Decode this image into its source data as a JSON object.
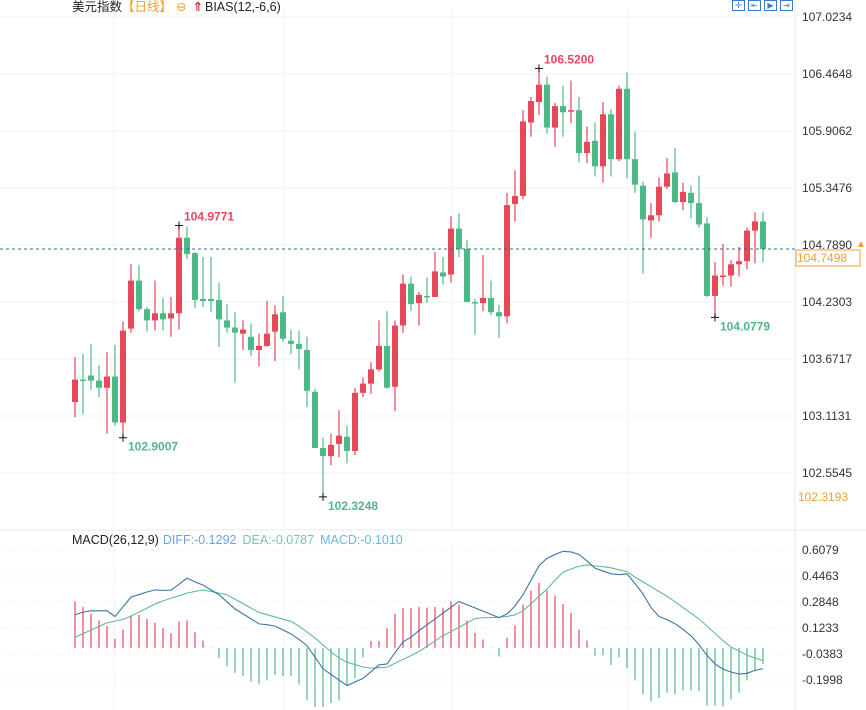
{
  "header": {
    "symbol": "美元指数",
    "timeframe": "【日线】",
    "collapse_icon": "circle-minus-icon",
    "indicator_icon": "red-up-arrow-icon",
    "indicator": "BIAS(12,-6,6)"
  },
  "toolbar": {
    "icons": [
      "crosshair-icon",
      "zoom-left-icon",
      "play-icon",
      "jump-end-icon"
    ]
  },
  "colors": {
    "up": "#e8465b",
    "down": "#52b788",
    "diff": "#3d74a6",
    "dea": "#62b99a",
    "last_price": "#f0a030",
    "grid": "#eef0f3"
  },
  "chart_data": [
    {
      "type": "candlestick",
      "title": "美元指数",
      "y_ticks": [
        "107.0234",
        "106.4648",
        "105.9062",
        "105.3476",
        "104.7890",
        "104.2303",
        "103.6717",
        "103.1131",
        "102.5545"
      ],
      "ylim": [
        102.3193,
        107.0234
      ],
      "grid": true,
      "last_price": "104.7498",
      "range_low_label": "102.3193",
      "annotations": [
        {
          "index": 13,
          "text": "104.9771",
          "kind": "high"
        },
        {
          "index": 58,
          "text": "106.5200",
          "kind": "high"
        },
        {
          "index": 6,
          "text": "102.9007",
          "kind": "low"
        },
        {
          "index": 31,
          "text": "102.3248",
          "kind": "low"
        },
        {
          "index": 80,
          "text": "104.0779",
          "kind": "low"
        }
      ],
      "ohlc": [
        [
          103.25,
          103.69,
          103.1,
          103.47
        ],
        [
          103.47,
          103.72,
          103.13,
          103.46
        ],
        [
          103.51,
          103.82,
          103.37,
          103.46
        ],
        [
          103.46,
          103.61,
          103.3,
          103.39
        ],
        [
          103.39,
          103.74,
          102.94,
          103.5
        ],
        [
          103.5,
          103.81,
          103.02,
          103.05
        ],
        [
          103.05,
          104.04,
          102.9,
          103.95
        ],
        [
          103.97,
          104.6,
          103.93,
          104.44
        ],
        [
          104.44,
          104.59,
          104.14,
          104.16
        ],
        [
          104.16,
          104.18,
          103.94,
          104.05
        ],
        [
          104.05,
          104.44,
          103.95,
          104.12
        ],
        [
          104.12,
          104.27,
          103.95,
          104.06
        ],
        [
          104.07,
          104.28,
          103.89,
          104.12
        ],
        [
          104.12,
          104.98,
          103.96,
          104.86
        ],
        [
          104.86,
          104.97,
          104.65,
          104.7
        ],
        [
          104.71,
          104.72,
          104.17,
          104.25
        ],
        [
          104.26,
          104.67,
          104.18,
          104.24
        ],
        [
          104.26,
          104.67,
          104.13,
          104.24
        ],
        [
          104.25,
          104.42,
          103.79,
          104.06
        ],
        [
          104.05,
          104.21,
          103.93,
          103.98
        ],
        [
          103.98,
          104.13,
          103.44,
          103.93
        ],
        [
          103.92,
          104.05,
          103.76,
          103.96
        ],
        [
          103.89,
          104.02,
          103.7,
          103.76
        ],
        [
          103.76,
          103.92,
          103.6,
          103.8
        ],
        [
          103.8,
          104.24,
          103.79,
          103.92
        ],
        [
          103.94,
          104.2,
          103.65,
          104.11
        ],
        [
          104.13,
          104.29,
          103.84,
          103.87
        ],
        [
          103.85,
          103.96,
          103.72,
          103.82
        ],
        [
          103.82,
          103.95,
          103.57,
          103.77
        ],
        [
          103.76,
          103.89,
          103.2,
          103.36
        ],
        [
          103.35,
          103.38,
          102.8,
          102.8
        ],
        [
          102.8,
          102.9,
          102.32,
          102.72
        ],
        [
          102.72,
          102.94,
          102.63,
          102.83
        ],
        [
          102.84,
          103.17,
          102.71,
          102.92
        ],
        [
          102.91,
          103.02,
          102.65,
          102.77
        ],
        [
          102.77,
          103.39,
          102.73,
          103.34
        ],
        [
          103.34,
          103.49,
          103.3,
          103.43
        ],
        [
          103.43,
          103.64,
          103.33,
          103.57
        ],
        [
          103.57,
          104.05,
          103.55,
          103.8
        ],
        [
          103.8,
          104.14,
          103.38,
          103.39
        ],
        [
          103.4,
          104.05,
          103.16,
          104.0
        ],
        [
          104.0,
          104.5,
          103.93,
          104.41
        ],
        [
          104.41,
          104.48,
          104.14,
          104.21
        ],
        [
          104.22,
          104.33,
          104.0,
          104.3
        ],
        [
          104.29,
          104.47,
          104.22,
          104.28
        ],
        [
          104.28,
          104.72,
          104.28,
          104.53
        ],
        [
          104.52,
          104.67,
          104.4,
          104.48
        ],
        [
          104.5,
          105.07,
          104.42,
          104.95
        ],
        [
          104.95,
          105.1,
          104.67,
          104.75
        ],
        [
          104.75,
          104.84,
          104.23,
          104.23
        ],
        [
          104.23,
          104.26,
          103.91,
          104.22
        ],
        [
          104.22,
          104.69,
          104.14,
          104.27
        ],
        [
          104.27,
          104.44,
          104.1,
          104.13
        ],
        [
          104.13,
          104.2,
          103.88,
          104.09
        ],
        [
          104.09,
          105.3,
          104.02,
          105.18
        ],
        [
          105.19,
          105.52,
          105.02,
          105.27
        ],
        [
          105.27,
          106.11,
          105.24,
          106.0
        ],
        [
          105.99,
          106.24,
          105.85,
          106.2
        ],
        [
          106.19,
          106.52,
          106.06,
          106.36
        ],
        [
          106.36,
          106.44,
          105.88,
          105.94
        ],
        [
          105.94,
          106.18,
          105.75,
          106.15
        ],
        [
          106.15,
          106.35,
          105.85,
          106.09
        ],
        [
          106.1,
          106.4,
          105.98,
          106.11
        ],
        [
          106.11,
          106.24,
          105.6,
          105.69
        ],
        [
          105.69,
          105.95,
          105.59,
          105.8
        ],
        [
          105.81,
          105.99,
          105.46,
          105.56
        ],
        [
          105.56,
          106.19,
          105.4,
          106.07
        ],
        [
          106.07,
          106.12,
          105.46,
          105.63
        ],
        [
          105.63,
          106.35,
          105.61,
          106.32
        ],
        [
          106.32,
          106.48,
          105.44,
          105.63
        ],
        [
          105.63,
          105.9,
          105.3,
          105.38
        ],
        [
          105.37,
          105.41,
          104.51,
          105.04
        ],
        [
          105.03,
          105.2,
          104.86,
          105.08
        ],
        [
          105.08,
          105.45,
          105.02,
          105.36
        ],
        [
          105.36,
          105.64,
          105.34,
          105.49
        ],
        [
          105.5,
          105.74,
          105.2,
          105.21
        ],
        [
          105.21,
          105.4,
          105.13,
          105.31
        ],
        [
          105.3,
          105.37,
          105.05,
          105.2
        ],
        [
          105.2,
          105.47,
          104.96,
          104.99
        ],
        [
          105.0,
          105.06,
          104.28,
          104.29
        ],
        [
          104.29,
          104.62,
          104.08,
          104.49
        ],
        [
          104.49,
          104.8,
          104.39,
          104.49
        ],
        [
          104.49,
          104.64,
          104.38,
          104.6
        ],
        [
          104.6,
          104.77,
          104.48,
          104.63
        ],
        [
          104.63,
          104.96,
          104.55,
          104.93
        ],
        [
          104.93,
          105.11,
          104.61,
          105.02
        ],
        [
          105.02,
          105.11,
          104.62,
          104.75
        ]
      ]
    },
    {
      "type": "macd",
      "title": "MACD(26,12,9)",
      "diff_label": "DIFF:-0.1292",
      "dea_label": "DEA:-0.0787",
      "macd_label": "MACD:-0.1010",
      "y_ticks": [
        "0.6079",
        "0.4463",
        "0.2848",
        "0.1233",
        "-0.0383",
        "-0.1998"
      ],
      "ylim": [
        -0.1998,
        0.6079
      ],
      "histogram": [
        0.288,
        0.253,
        0.211,
        0.17,
        0.135,
        0.056,
        0.114,
        0.201,
        0.205,
        0.18,
        0.155,
        0.122,
        0.091,
        0.163,
        0.17,
        0.097,
        0.045,
        0.002,
        -0.064,
        -0.114,
        -0.155,
        -0.176,
        -0.209,
        -0.224,
        -0.203,
        -0.168,
        -0.176,
        -0.176,
        -0.228,
        -0.323,
        -0.368,
        -0.368,
        -0.343,
        -0.327,
        -0.238,
        -0.188,
        -0.058,
        0.042,
        0.042,
        0.122,
        0.211,
        0.247,
        0.247,
        0.253,
        0.25,
        0.253,
        0.25,
        0.288,
        0.269,
        0.17,
        0.093,
        0.052,
        0.002,
        -0.054,
        0.062,
        0.139,
        0.269,
        0.356,
        0.404,
        0.356,
        0.325,
        0.273,
        0.217,
        0.114,
        0.045,
        -0.048,
        -0.046,
        -0.106,
        -0.058,
        -0.126,
        -0.203,
        -0.286,
        -0.333,
        -0.312,
        -0.279,
        -0.286,
        -0.265,
        -0.265,
        -0.27,
        -0.358,
        -0.358,
        -0.364,
        -0.321,
        -0.279,
        -0.203,
        -0.141,
        -0.101
      ],
      "diff": [
        0.205,
        0.222,
        0.23,
        0.23,
        0.23,
        0.195,
        0.255,
        0.315,
        0.331,
        0.347,
        0.36,
        0.357,
        0.358,
        0.395,
        0.433,
        0.41,
        0.39,
        0.36,
        0.33,
        0.286,
        0.242,
        0.211,
        0.18,
        0.149,
        0.144,
        0.135,
        0.111,
        0.087,
        0.052,
        0.014,
        -0.058,
        -0.13,
        -0.165,
        -0.2,
        -0.234,
        -0.212,
        -0.19,
        -0.148,
        -0.106,
        -0.1,
        -0.03,
        0.037,
        0.066,
        0.107,
        0.143,
        0.179,
        0.216,
        0.252,
        0.288,
        0.268,
        0.248,
        0.228,
        0.208,
        0.188,
        0.21,
        0.26,
        0.33,
        0.42,
        0.51,
        0.556,
        0.58,
        0.6,
        0.596,
        0.58,
        0.54,
        0.495,
        0.477,
        0.46,
        0.455,
        0.46,
        0.4,
        0.335,
        0.25,
        0.195,
        0.175,
        0.15,
        0.115,
        0.075,
        0.02,
        -0.047,
        -0.1,
        -0.132,
        -0.15,
        -0.163,
        -0.158,
        -0.14,
        -0.129
      ],
      "dea": [
        0.066,
        0.088,
        0.11,
        0.133,
        0.155,
        0.166,
        0.177,
        0.197,
        0.222,
        0.247,
        0.272,
        0.292,
        0.308,
        0.324,
        0.34,
        0.35,
        0.36,
        0.35,
        0.34,
        0.33,
        0.302,
        0.275,
        0.247,
        0.22,
        0.206,
        0.192,
        0.178,
        0.164,
        0.135,
        0.099,
        0.061,
        0.018,
        -0.025,
        -0.062,
        -0.09,
        -0.104,
        -0.119,
        -0.126,
        -0.123,
        -0.12,
        -0.096,
        -0.072,
        -0.048,
        -0.023,
        0.01,
        0.043,
        0.076,
        0.102,
        0.128,
        0.155,
        0.182,
        0.187,
        0.188,
        0.19,
        0.195,
        0.205,
        0.23,
        0.274,
        0.32,
        0.365,
        0.42,
        0.47,
        0.49,
        0.507,
        0.515,
        0.51,
        0.504,
        0.497,
        0.485,
        0.473,
        0.44,
        0.41,
        0.38,
        0.35,
        0.32,
        0.287,
        0.25,
        0.215,
        0.18,
        0.135,
        0.09,
        0.045,
        0.005,
        -0.02,
        -0.046,
        -0.063,
        -0.079
      ]
    }
  ]
}
